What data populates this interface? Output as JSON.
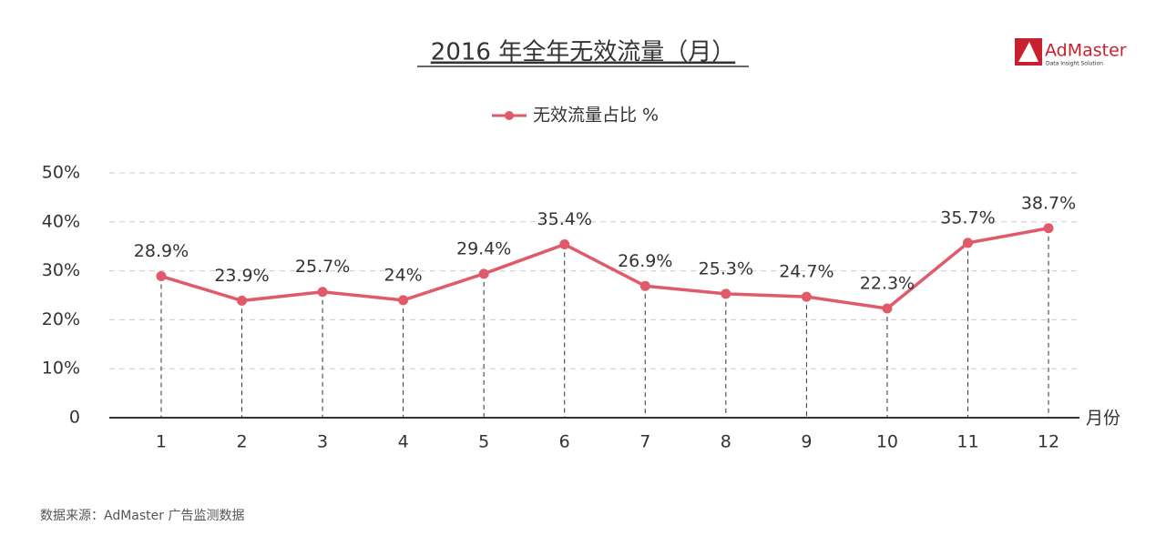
{
  "chart_data": {
    "type": "line",
    "title": "2016 年全年无效流量（月）",
    "logo": {
      "name": "AdMaster",
      "tagline": "Data Insight Solution"
    },
    "source": "数据来源：AdMaster 广告监测数据",
    "x_label": "月份",
    "categories": [
      "1",
      "2",
      "3",
      "4",
      "5",
      "6",
      "7",
      "8",
      "9",
      "10",
      "11",
      "12"
    ],
    "series": [
      {
        "name": "无效流量占比 %",
        "color": "#e05a6a",
        "values": [
          28.9,
          23.9,
          25.7,
          24,
          29.4,
          35.4,
          26.9,
          25.3,
          24.7,
          22.3,
          35.7,
          38.7
        ],
        "value_labels": [
          "28.9%",
          "23.9%",
          "25.7%",
          "24%",
          "29.4%",
          "35.4%",
          "26.9%",
          "25.3%",
          "24.7%",
          "22.3%",
          "35.7%",
          "38.7%"
        ]
      }
    ],
    "ylim": [
      0,
      50
    ],
    "yticks": [
      0,
      {
        "value": 10,
        "label": "10%"
      },
      {
        "value": 20,
        "label": "20%"
      },
      {
        "value": 30,
        "label": "30%"
      },
      {
        "value": 40,
        "label": "40%"
      },
      {
        "value": 50,
        "label": "50%"
      }
    ],
    "grid": true,
    "legend": "top"
  }
}
